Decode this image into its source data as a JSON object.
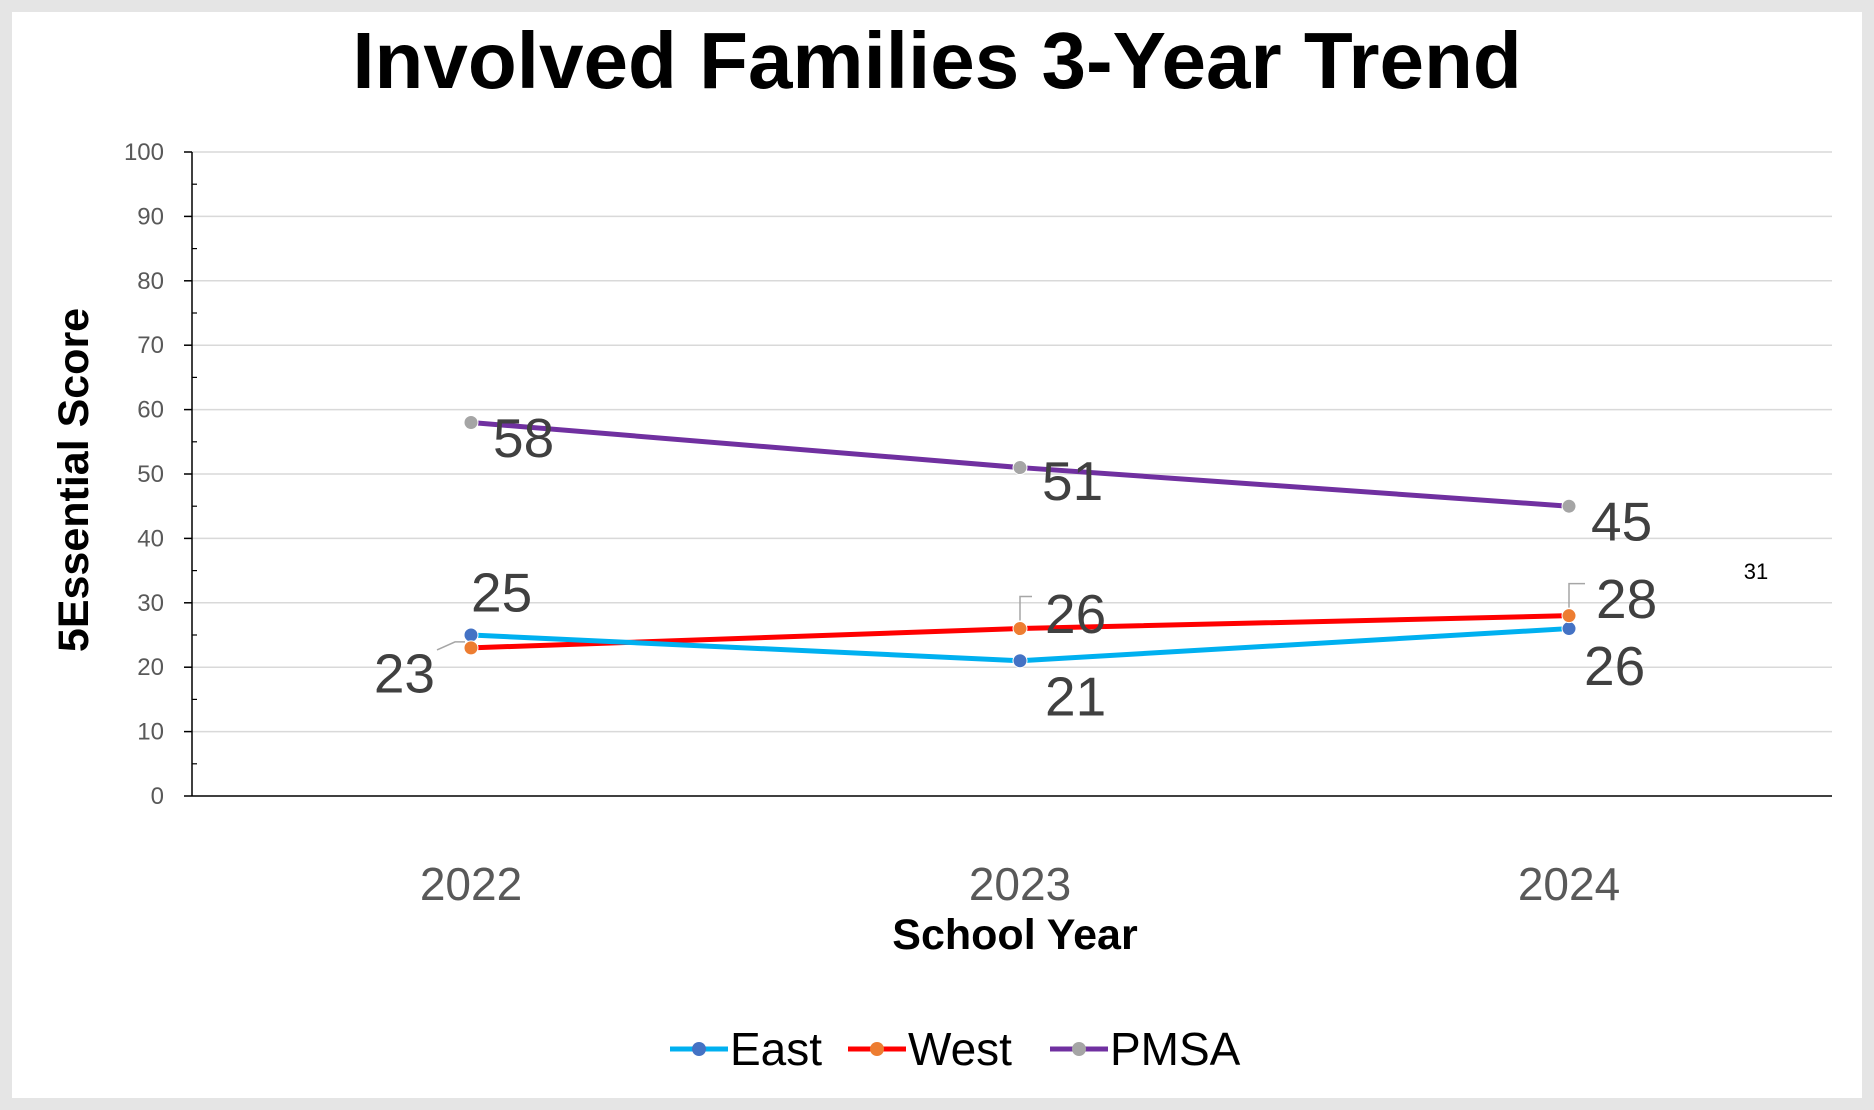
{
  "chart_data": {
    "type": "line",
    "title": "Involved Families 3-Year Trend",
    "xlabel": "School Year",
    "ylabel": "5Essential Score",
    "categories": [
      "2022",
      "2023",
      "2024"
    ],
    "ylim": [
      0,
      100
    ],
    "yticks": [
      "0",
      "10",
      "20",
      "30",
      "40",
      "50",
      "60",
      "70",
      "80",
      "90",
      "100"
    ],
    "grid": true,
    "legend_position": "bottom",
    "series": [
      {
        "name": "East",
        "values": [
          25,
          21,
          26
        ],
        "labels": [
          "25",
          "21",
          "26"
        ],
        "line_color": "#00b0f0",
        "marker_color": "#4472c4"
      },
      {
        "name": "West",
        "values": [
          23,
          26,
          28
        ],
        "labels": [
          "23",
          "26",
          "28"
        ],
        "line_color": "#ff0000",
        "marker_color": "#ed7d31"
      },
      {
        "name": "PMSA",
        "values": [
          58,
          51,
          45
        ],
        "labels": [
          "58",
          "51",
          "45"
        ],
        "line_color": "#7030a0",
        "marker_color": "#a5a5a5"
      }
    ],
    "annotations": [
      "31"
    ]
  }
}
